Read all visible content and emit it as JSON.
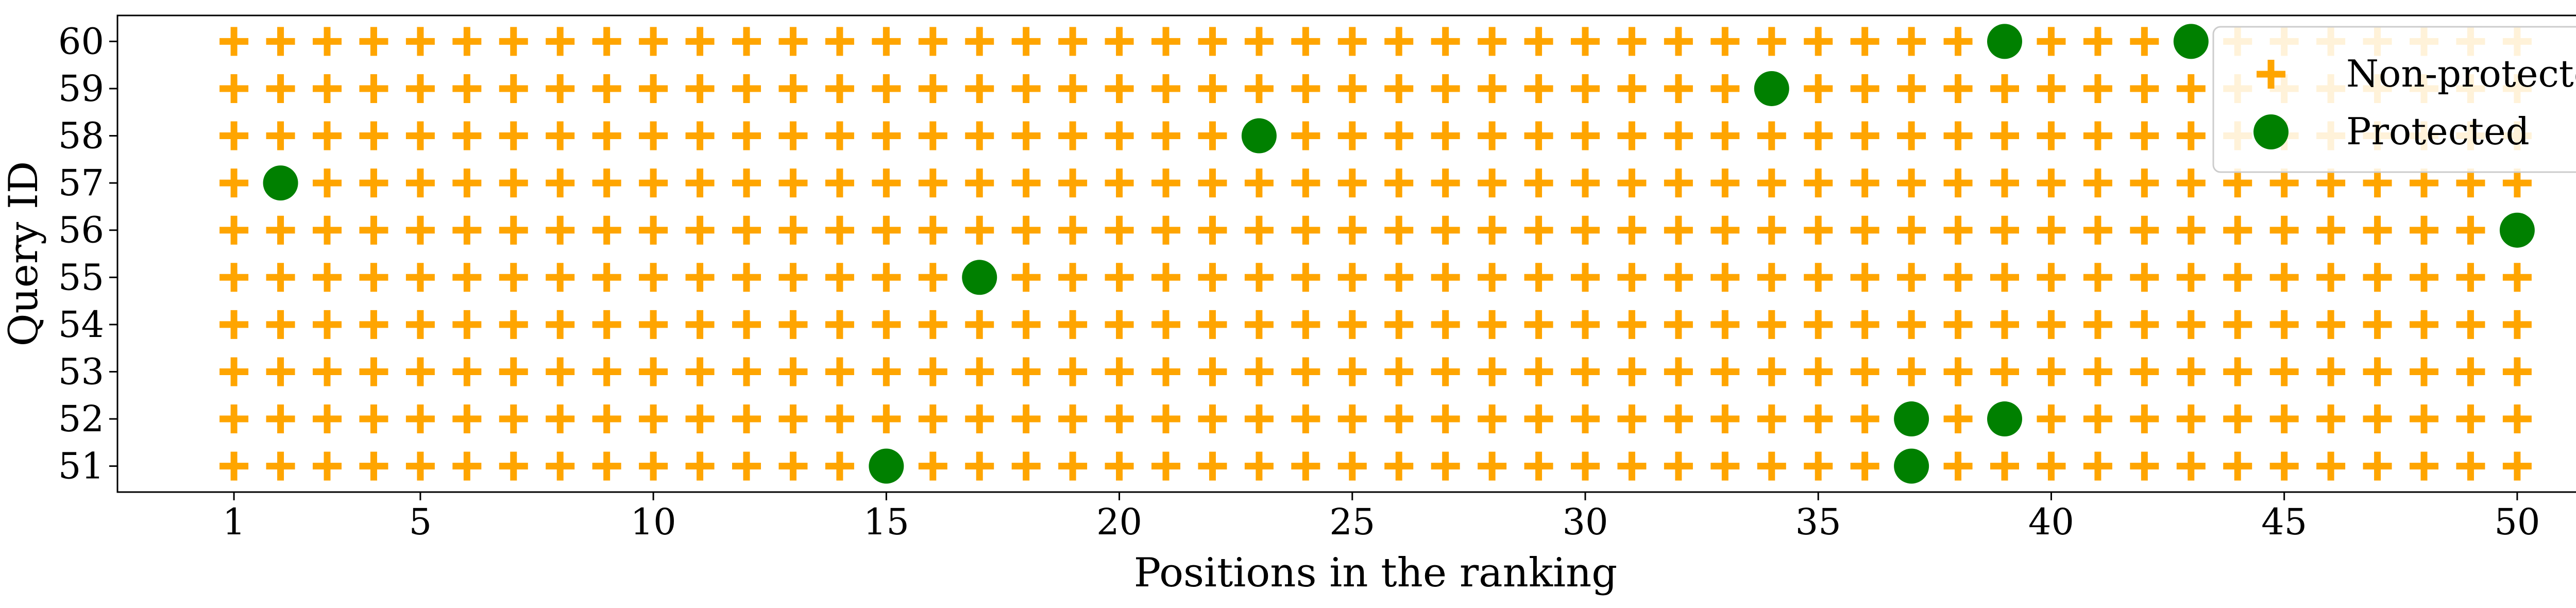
{
  "chart_data": {
    "type": "scatter",
    "xlabel": "Positions in the ranking",
    "ylabel": "Query ID",
    "xlim": [
      -1.5,
      52.5
    ],
    "ylim": [
      50.45,
      60.55
    ],
    "x_ticks": [
      1,
      5,
      10,
      15,
      20,
      25,
      30,
      35,
      40,
      45,
      50
    ],
    "y_ticks": [
      51,
      52,
      53,
      54,
      55,
      56,
      57,
      58,
      59,
      60
    ],
    "positions": [
      1,
      50
    ],
    "queries": [
      51,
      60
    ],
    "legend_position": "top-right",
    "series": [
      {
        "name": "Non-protected",
        "marker": "plus",
        "color": "#FFA500",
        "description": "all remaining positions 1-50 for every query 51-60"
      },
      {
        "name": "Protected",
        "marker": "circle",
        "color": "#008000",
        "points": [
          {
            "x": 39,
            "y": 60
          },
          {
            "x": 43,
            "y": 60
          },
          {
            "x": 34,
            "y": 59
          },
          {
            "x": 23,
            "y": 58
          },
          {
            "x": 2,
            "y": 57
          },
          {
            "x": 50,
            "y": 56
          },
          {
            "x": 17,
            "y": 55
          },
          {
            "x": 37,
            "y": 52
          },
          {
            "x": 39,
            "y": 52
          },
          {
            "x": 15,
            "y": 51
          },
          {
            "x": 37,
            "y": 51
          }
        ]
      }
    ]
  }
}
